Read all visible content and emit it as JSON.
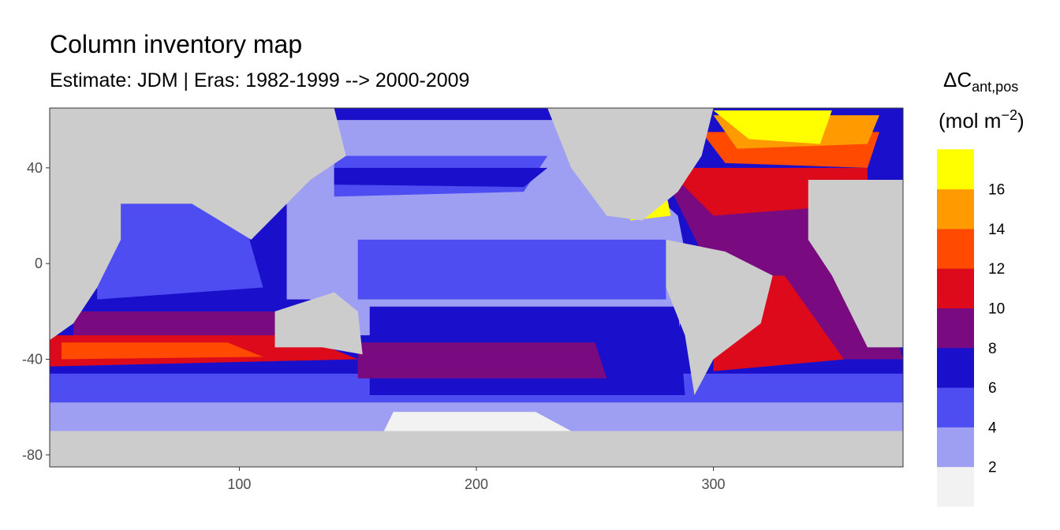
{
  "chart_data": {
    "type": "heatmap",
    "title": "Column inventory map",
    "subtitle": "Estimate: JDM  | Eras: 1982-1999 --> 2000-2009",
    "xlabel": "",
    "ylabel": "",
    "xlim": [
      20,
      380
    ],
    "ylim": [
      -85,
      65
    ],
    "x_ticks": [
      100,
      200,
      300
    ],
    "y_ticks": [
      40,
      0,
      -40,
      -80
    ],
    "grid": false,
    "land_color": "#cccccc",
    "legend": {
      "title_main": "ΔC",
      "title_sub": "ant,pos",
      "unit_prefix": "(mol m",
      "unit_sup": "−2",
      "unit_suffix": ")",
      "placement": "right",
      "bins": [
        {
          "label": "",
          "color": "#f2f2f2"
        },
        {
          "label": "2",
          "color": "#9e9ef2"
        },
        {
          "label": "4",
          "color": "#4d4df2"
        },
        {
          "label": "6",
          "color": "#1a10cc"
        },
        {
          "label": "8",
          "color": "#7a0a80"
        },
        {
          "label": "10",
          "color": "#dd0a1c"
        },
        {
          "label": "12",
          "color": "#ff4a00"
        },
        {
          "label": "14",
          "color": "#ff9a00"
        },
        {
          "label": "16",
          "color": "#ffff00"
        }
      ]
    },
    "regions": [
      {
        "name": "southern-ocean-band",
        "bin": 1,
        "pts": [
          [
            20,
            -58
          ],
          [
            380,
            -58
          ],
          [
            380,
            -85
          ],
          [
            20,
            -85
          ]
        ]
      },
      {
        "name": "southern-blue",
        "bin": 2,
        "pts": [
          [
            20,
            -46
          ],
          [
            380,
            -46
          ],
          [
            380,
            -58
          ],
          [
            20,
            -58
          ]
        ]
      },
      {
        "name": "antarctic-white",
        "bin": 0,
        "pts": [
          [
            165,
            -62
          ],
          [
            225,
            -62
          ],
          [
            240,
            -70
          ],
          [
            160,
            -72
          ]
        ]
      },
      {
        "name": "pacific-light",
        "bin": 1,
        "pts": [
          [
            120,
            60
          ],
          [
            240,
            60
          ],
          [
            285,
            20
          ],
          [
            290,
            -5
          ],
          [
            285,
            -30
          ],
          [
            120,
            -30
          ]
        ]
      },
      {
        "name": "north-pacific",
        "bin": 2,
        "pts": [
          [
            140,
            45
          ],
          [
            230,
            45
          ],
          [
            220,
            30
          ],
          [
            140,
            28
          ]
        ]
      },
      {
        "name": "north-pacific-dark",
        "bin": 3,
        "pts": [
          [
            140,
            40
          ],
          [
            230,
            40
          ],
          [
            220,
            32
          ],
          [
            140,
            33
          ]
        ]
      },
      {
        "name": "equatorial-pacific",
        "bin": 2,
        "pts": [
          [
            150,
            10
          ],
          [
            280,
            10
          ],
          [
            280,
            -15
          ],
          [
            150,
            -15
          ]
        ]
      },
      {
        "name": "south-pacific-dark",
        "bin": 3,
        "pts": [
          [
            155,
            -18
          ],
          [
            285,
            -18
          ],
          [
            288,
            -55
          ],
          [
            155,
            -55
          ]
        ]
      },
      {
        "name": "indian-ocean",
        "bin": 2,
        "pts": [
          [
            40,
            25
          ],
          [
            100,
            25
          ],
          [
            110,
            -10
          ],
          [
            40,
            -15
          ]
        ]
      },
      {
        "name": "indian-south",
        "bin": 3,
        "pts": [
          [
            20,
            -15
          ],
          [
            130,
            -15
          ],
          [
            145,
            -30
          ],
          [
            20,
            -30
          ]
        ]
      },
      {
        "name": "indian-purple",
        "bin": 4,
        "pts": [
          [
            30,
            -20
          ],
          [
            130,
            -20
          ],
          [
            145,
            -33
          ],
          [
            30,
            -35
          ]
        ]
      },
      {
        "name": "southern-purple",
        "bin": 4,
        "pts": [
          [
            150,
            -33
          ],
          [
            250,
            -33
          ],
          [
            255,
            -48
          ],
          [
            150,
            -48
          ]
        ]
      },
      {
        "name": "indian-red",
        "bin": 5,
        "pts": [
          [
            20,
            -30
          ],
          [
            125,
            -30
          ],
          [
            150,
            -40
          ],
          [
            20,
            -43
          ]
        ]
      },
      {
        "name": "indian-orange",
        "bin": 6,
        "pts": [
          [
            25,
            -33
          ],
          [
            95,
            -33
          ],
          [
            110,
            -39
          ],
          [
            25,
            -40
          ]
        ]
      },
      {
        "name": "south-atlantic-red",
        "bin": 5,
        "pts": [
          [
            300,
            -5
          ],
          [
            355,
            -5
          ],
          [
            378,
            -38
          ],
          [
            300,
            -45
          ]
        ]
      },
      {
        "name": "south-atlantic-purple",
        "bin": 4,
        "pts": [
          [
            330,
            -5
          ],
          [
            370,
            -5
          ],
          [
            380,
            -40
          ],
          [
            355,
            -40
          ]
        ]
      },
      {
        "name": "north-atlantic-purple",
        "bin": 4,
        "pts": [
          [
            280,
            35
          ],
          [
            365,
            35
          ],
          [
            368,
            -5
          ],
          [
            300,
            -5
          ]
        ]
      },
      {
        "name": "north-atlantic-red",
        "bin": 5,
        "pts": [
          [
            280,
            40
          ],
          [
            365,
            40
          ],
          [
            365,
            25
          ],
          [
            300,
            20
          ]
        ]
      },
      {
        "name": "north-atlantic-orange",
        "bin": 6,
        "pts": [
          [
            295,
            55
          ],
          [
            370,
            55
          ],
          [
            365,
            40
          ],
          [
            305,
            42
          ]
        ]
      },
      {
        "name": "north-atlantic-gold",
        "bin": 7,
        "pts": [
          [
            300,
            62
          ],
          [
            370,
            62
          ],
          [
            365,
            50
          ],
          [
            310,
            48
          ]
        ]
      },
      {
        "name": "labrador-yellow",
        "bin": 8,
        "pts": [
          [
            300,
            64
          ],
          [
            350,
            64
          ],
          [
            345,
            50
          ],
          [
            315,
            52
          ]
        ]
      },
      {
        "name": "med-yellow",
        "bin": 8,
        "pts": [
          [
            264,
            30
          ],
          [
            280,
            30
          ],
          [
            282,
            20
          ],
          [
            265,
            18
          ]
        ]
      }
    ],
    "land": [
      {
        "name": "north-america",
        "pts": [
          [
            230,
            65
          ],
          [
            300,
            65
          ],
          [
            295,
            45
          ],
          [
            285,
            30
          ],
          [
            270,
            18
          ],
          [
            255,
            20
          ],
          [
            240,
            40
          ]
        ]
      },
      {
        "name": "south-america",
        "pts": [
          [
            280,
            10
          ],
          [
            305,
            5
          ],
          [
            325,
            -5
          ],
          [
            320,
            -25
          ],
          [
            300,
            -40
          ],
          [
            292,
            -55
          ],
          [
            288,
            -30
          ],
          [
            280,
            -10
          ]
        ]
      },
      {
        "name": "africa",
        "pts": [
          [
            340,
            35
          ],
          [
            380,
            35
          ],
          [
            380,
            -35
          ],
          [
            365,
            -35
          ],
          [
            350,
            -5
          ],
          [
            340,
            10
          ]
        ]
      },
      {
        "name": "eurasia",
        "pts": [
          [
            20,
            65
          ],
          [
            140,
            65
          ],
          [
            145,
            45
          ],
          [
            130,
            35
          ],
          [
            120,
            25
          ],
          [
            105,
            10
          ],
          [
            80,
            25
          ],
          [
            55,
            25
          ],
          [
            20,
            25
          ]
        ]
      },
      {
        "name": "west-africa",
        "pts": [
          [
            20,
            30
          ],
          [
            50,
            30
          ],
          [
            50,
            10
          ],
          [
            40,
            -10
          ],
          [
            30,
            -25
          ],
          [
            20,
            -32
          ]
        ]
      },
      {
        "name": "australia",
        "pts": [
          [
            115,
            -20
          ],
          [
            140,
            -12
          ],
          [
            150,
            -20
          ],
          [
            152,
            -38
          ],
          [
            135,
            -35
          ],
          [
            115,
            -35
          ]
        ]
      },
      {
        "name": "antarctica",
        "pts": [
          [
            20,
            -70
          ],
          [
            380,
            -70
          ],
          [
            380,
            -85
          ],
          [
            20,
            -85
          ]
        ]
      }
    ]
  }
}
